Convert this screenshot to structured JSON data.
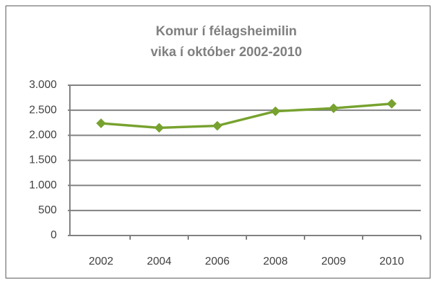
{
  "chart_data": {
    "type": "line",
    "title": [
      "Komur í félagsheimilin",
      "vika í október 2002-2010"
    ],
    "categories": [
      "2002",
      "2004",
      "2006",
      "2008",
      "2009",
      "2010"
    ],
    "series": [
      {
        "name": null,
        "color": "#77a22f",
        "values": [
          2240,
          2150,
          2190,
          2480,
          2540,
          2630
        ]
      }
    ],
    "ylim": [
      0,
      3000
    ],
    "yticks": [
      0,
      500,
      {
        "value": 1000,
        "label": "1.000"
      },
      {
        "value": 1500,
        "label": "1.500"
      },
      {
        "value": 2000,
        "label": "2.000"
      },
      {
        "value": 2500,
        "label": "2.500"
      },
      {
        "value": 3000,
        "label": "3.000"
      }
    ],
    "grid": true,
    "legend": false
  }
}
